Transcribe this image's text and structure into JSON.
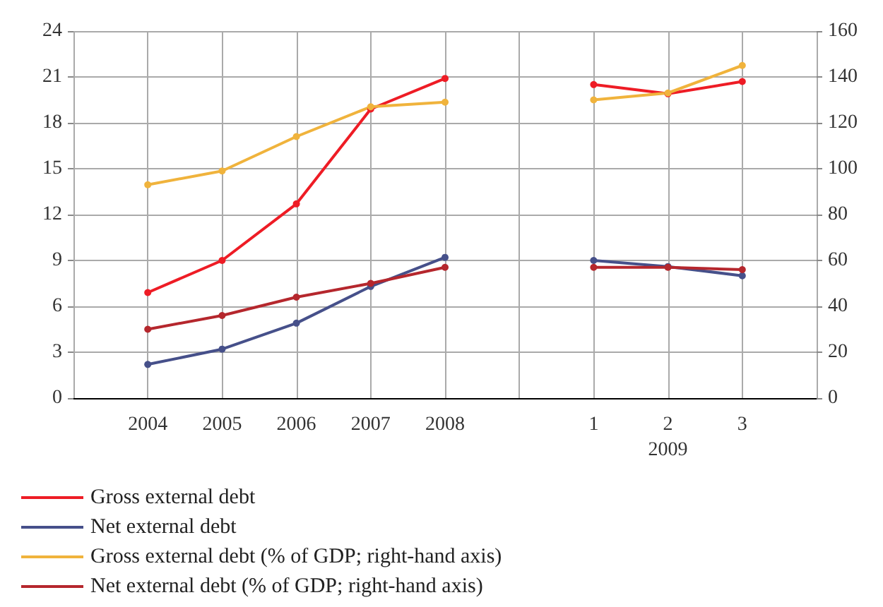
{
  "chart_data": {
    "type": "line",
    "categories": [
      null,
      "2004",
      "2005",
      "2006",
      "2007",
      "2008",
      null,
      "1",
      "2",
      "3",
      null
    ],
    "series": [
      {
        "name": "Gross external debt",
        "color": "#ee1c25",
        "values": [
          null,
          6.9,
          9.0,
          12.7,
          18.9,
          20.9,
          null,
          20.5,
          19.9,
          20.7,
          null
        ]
      },
      {
        "name": "Net external debt",
        "color": "#46508a",
        "values": [
          null,
          2.2,
          3.2,
          4.9,
          7.3,
          9.2,
          null,
          9.0,
          8.6,
          8.0,
          null
        ]
      },
      {
        "name": "Gross external debt (% of GDP; right-hand axis)",
        "color": "#f0b33c",
        "axis": "y2",
        "values": [
          null,
          93,
          99,
          114,
          127,
          129,
          null,
          130,
          133,
          145,
          null
        ]
      },
      {
        "name": "Net external debt (% of GDP; right-hand axis)",
        "color": "#b5272d",
        "axis": "y2",
        "values": [
          null,
          30,
          36,
          44,
          50,
          57,
          null,
          57,
          57,
          56,
          null
        ]
      }
    ],
    "ylim": [
      0,
      24
    ],
    "yticks": [
      0,
      3,
      6,
      9,
      12,
      15,
      18,
      21,
      24
    ],
    "y2lim": [
      0,
      160
    ],
    "y2ticks": [
      0,
      20,
      40,
      60,
      80,
      100,
      120,
      140,
      160
    ],
    "annotations": [
      "2009"
    ],
    "grid": true,
    "legend": "bottom",
    "marker": "circle",
    "line_style": "solid"
  }
}
